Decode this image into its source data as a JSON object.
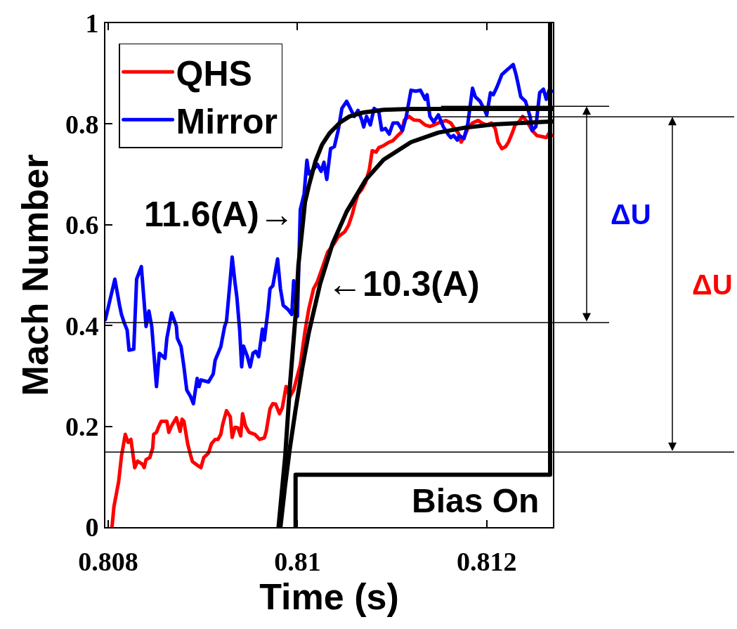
{
  "chart_data": {
    "type": "line",
    "xlabel": "Time (s)",
    "ylabel": "Mach Number",
    "xlim": [
      0.80797,
      0.8127
    ],
    "xticks": [
      0.808,
      0.81,
      0.812
    ],
    "ylim": [
      0,
      1
    ],
    "yticks": [
      0,
      0.2,
      0.4,
      0.6,
      0.8,
      1
    ],
    "legend": "top left",
    "series": [
      {
        "name": "QHS",
        "color": "#ff0000",
        "x": [
          0.80804,
          0.80806,
          0.80811,
          0.80814,
          0.80818,
          0.80821,
          0.80824,
          0.80828,
          0.80831,
          0.80836,
          0.80838,
          0.8084,
          0.80844,
          0.80847,
          0.80848,
          0.80851,
          0.80853,
          0.80856,
          0.80862,
          0.80864,
          0.80867,
          0.80872,
          0.80876,
          0.80878,
          0.8088,
          0.80884,
          0.80887,
          0.80889,
          0.80894,
          0.80898,
          0.80901,
          0.80906,
          0.80909,
          0.80913,
          0.80916,
          0.80919,
          0.80921,
          0.80925,
          0.80929,
          0.80931,
          0.80934,
          0.80937,
          0.8094,
          0.80942,
          0.80945,
          0.80949,
          0.80955,
          0.8096,
          0.80965,
          0.80967,
          0.80971,
          0.80974,
          0.80977,
          0.80981,
          0.80984,
          0.80988,
          0.80992,
          0.80996,
          0.81003,
          0.81008,
          0.81012,
          0.81017,
          0.81021,
          0.81026,
          0.81032,
          0.81039,
          0.81043,
          0.8105,
          0.81054,
          0.81058,
          0.81061,
          0.81064,
          0.81068,
          0.81072,
          0.81076,
          0.81079,
          0.81083,
          0.81086,
          0.81091,
          0.81097,
          0.81101,
          0.81106,
          0.8111,
          0.81113,
          0.81118,
          0.81123,
          0.81129,
          0.81135,
          0.8114,
          0.81144,
          0.81149,
          0.81157,
          0.81162,
          0.81166,
          0.8117,
          0.81173,
          0.81177,
          0.8118,
          0.81185,
          0.81191,
          0.81195,
          0.812,
          0.81205,
          0.81209,
          0.81212,
          0.81216,
          0.8122,
          0.81223,
          0.81227,
          0.8123,
          0.81234,
          0.81238,
          0.81243,
          0.81248,
          0.81253,
          0.81258,
          0.81263,
          0.81266,
          0.81269
        ],
        "values": [
          0,
          0.04,
          0.09,
          0.141,
          0.184,
          0.168,
          0.174,
          0.118,
          0.131,
          0.125,
          0.118,
          0.134,
          0.138,
          0.157,
          0.184,
          0.188,
          0.198,
          0.21,
          0.21,
          0.188,
          0.201,
          0.217,
          0.19,
          0.214,
          0.21,
          0.165,
          0.143,
          0.13,
          0.123,
          0.118,
          0.138,
          0.147,
          0.165,
          0.174,
          0.174,
          0.184,
          0.204,
          0.231,
          0.219,
          0.178,
          0.198,
          0.197,
          0.181,
          0.225,
          0.201,
          0.188,
          0.184,
          0.174,
          0.177,
          0.19,
          0.235,
          0.245,
          0.244,
          0.225,
          0.237,
          0.279,
          0.259,
          0.272,
          0.322,
          0.389,
          0.433,
          0.473,
          0.487,
          0.513,
          0.546,
          0.563,
          0.576,
          0.586,
          0.599,
          0.621,
          0.643,
          0.661,
          0.67,
          0.684,
          0.71,
          0.747,
          0.744,
          0.753,
          0.757,
          0.764,
          0.767,
          0.777,
          0.784,
          0.808,
          0.815,
          0.808,
          0.807,
          0.798,
          0.795,
          0.798,
          0.802,
          0.807,
          0.802,
          0.791,
          0.782,
          0.764,
          0.777,
          0.791,
          0.802,
          0.807,
          0.802,
          0.798,
          0.802,
          0.791,
          0.764,
          0.751,
          0.755,
          0.764,
          0.782,
          0.798,
          0.804,
          0.815,
          0.804,
          0.787,
          0.777,
          0.775,
          0.773,
          0.782,
          0.777
        ]
      },
      {
        "name": "Mirror",
        "color": "#0000ff",
        "x": [
          0.80797,
          0.80807,
          0.80812,
          0.80814,
          0.80817,
          0.8082,
          0.80822,
          0.80827,
          0.8083,
          0.80835,
          0.8084,
          0.80843,
          0.80846,
          0.80851,
          0.80854,
          0.8086,
          0.80862,
          0.80867,
          0.80872,
          0.80873,
          0.80877,
          0.8088,
          0.80883,
          0.80887,
          0.8089,
          0.80894,
          0.80896,
          0.80898,
          0.80906,
          0.80911,
          0.80913,
          0.80919,
          0.80923,
          0.80925,
          0.80929,
          0.80931,
          0.80934,
          0.80936,
          0.80939,
          0.80941,
          0.80943,
          0.80947,
          0.8095,
          0.80953,
          0.80956,
          0.80959,
          0.80963,
          0.80965,
          0.80969,
          0.80971,
          0.80974,
          0.80979,
          0.80982,
          0.80985,
          0.8099,
          0.80994,
          0.80996,
          0.81,
          0.81003,
          0.81007,
          0.8101,
          0.81012,
          0.81017,
          0.81021,
          0.81025,
          0.81028,
          0.81031,
          0.81035,
          0.81039,
          0.81043,
          0.81047,
          0.81052,
          0.81055,
          0.8106,
          0.81064,
          0.81068,
          0.8107,
          0.81073,
          0.81077,
          0.81081,
          0.81086,
          0.81089,
          0.81093,
          0.81097,
          0.81101,
          0.81106,
          0.81111,
          0.81115,
          0.8112,
          0.81125,
          0.8113,
          0.81135,
          0.81137,
          0.8114,
          0.81144,
          0.81149,
          0.81154,
          0.81159,
          0.81162,
          0.81165,
          0.81169,
          0.81171,
          0.81176,
          0.8118,
          0.81185,
          0.81188,
          0.81193,
          0.81198,
          0.812,
          0.81204,
          0.81207,
          0.81211,
          0.81216,
          0.81222,
          0.81228,
          0.81231,
          0.81233,
          0.81236,
          0.81241,
          0.81246,
          0.81248,
          0.81252,
          0.81256,
          0.8126,
          0.81263,
          0.81266,
          0.81269
        ],
        "values": [
          0.412,
          0.492,
          0.44,
          0.422,
          0.405,
          0.391,
          0.351,
          0.353,
          0.492,
          0.517,
          0.398,
          0.429,
          0.398,
          0.279,
          0.345,
          0.335,
          0.375,
          0.425,
          0.399,
          0.375,
          0.358,
          0.318,
          0.272,
          0.259,
          0.245,
          0.295,
          0.279,
          0.292,
          0.288,
          0.304,
          0.331,
          0.358,
          0.398,
          0.409,
          0.492,
          0.536,
          0.485,
          0.456,
          0.389,
          0.318,
          0.359,
          0.339,
          0.318,
          0.345,
          0.349,
          0.338,
          0.393,
          0.371,
          0.433,
          0.473,
          0.479,
          0.532,
          0.473,
          0.44,
          0.432,
          0.422,
          0.489,
          0.418,
          0.63,
          0.661,
          0.728,
          0.701,
          0.71,
          0.72,
          0.706,
          0.724,
          0.69,
          0.751,
          0.755,
          0.787,
          0.831,
          0.845,
          0.834,
          0.815,
          0.827,
          0.808,
          0.794,
          0.815,
          0.798,
          0.831,
          0.824,
          0.788,
          0.791,
          0.78,
          0.802,
          0.802,
          0.787,
          0.815,
          0.867,
          0.865,
          0.867,
          0.849,
          0.858,
          0.815,
          0.804,
          0.818,
          0.795,
          0.78,
          0.773,
          0.777,
          0.768,
          0.777,
          0.771,
          0.8,
          0.871,
          0.854,
          0.845,
          0.827,
          0.818,
          0.862,
          0.858,
          0.874,
          0.898,
          0.908,
          0.918,
          0.898,
          0.881,
          0.854,
          0.845,
          0.814,
          0.787,
          0.795,
          0.862,
          0.869,
          0.849,
          0.867,
          0.865
        ]
      },
      {
        "type": "line",
        "color": "#000000",
        "x": [
          0.8098,
          0.80987,
          0.80992,
          0.80998,
          0.81001,
          0.81005,
          0.81008,
          0.81012,
          0.81019,
          0.81026,
          0.81034,
          0.81045,
          0.81055,
          0.8107,
          0.81091,
          0.8112,
          0.8127
        ],
        "values": [
          0,
          0.14,
          0.28,
          0.42,
          0.52,
          0.59,
          0.645,
          0.677,
          0.726,
          0.759,
          0.782,
          0.803,
          0.815,
          0.823,
          0.828,
          0.83,
          0.83
        ]
      },
      {
        "type": "line",
        "color": "#000000",
        "x": [
          0.80982,
          0.80987,
          0.80992,
          0.80998,
          0.81005,
          0.81012,
          0.81024,
          0.81037,
          0.81052,
          0.81072,
          0.81091,
          0.8112,
          0.81149,
          0.81178,
          0.81207,
          0.81236,
          0.8127
        ],
        "values": [
          0,
          0.083,
          0.157,
          0.233,
          0.315,
          0.386,
          0.483,
          0.562,
          0.626,
          0.689,
          0.729,
          0.764,
          0.783,
          0.793,
          0.799,
          0.802,
          0.805
        ]
      },
      {
        "name": "Bias On",
        "type": "step",
        "color": "#000000",
        "x": [
          0.80998,
          0.80998,
          0.81267,
          0.81267
        ],
        "values": [
          0,
          0.104,
          0.104,
          1
        ]
      }
    ],
    "ref_lines": [
      {
        "axis": "y",
        "value": 0.814
      },
      {
        "axis": "y",
        "value": 0.149
      },
      {
        "axis": "y",
        "value": 0.835
      },
      {
        "axis": "y",
        "value": 0.406
      }
    ],
    "annotations": [
      {
        "text": "11.6(A)→",
        "x": 0.81,
        "y": 0.621
      },
      {
        "text": "←10.3(A)",
        "x": 0.81024,
        "y": 0.483
      },
      "ΔU",
      "ΔU"
    ]
  }
}
